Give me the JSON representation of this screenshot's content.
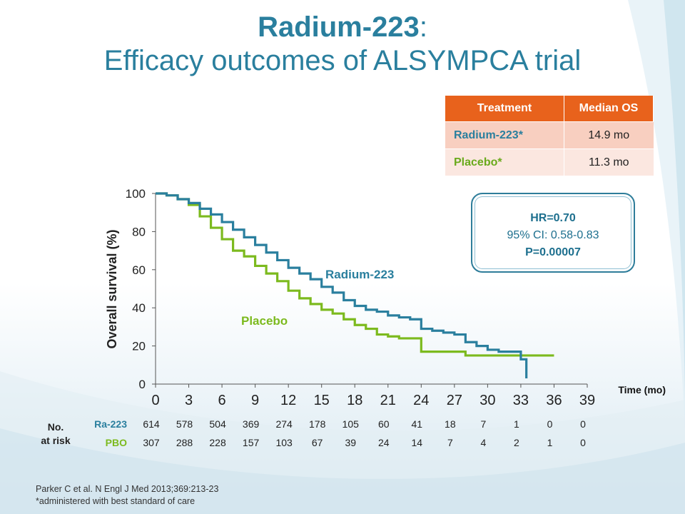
{
  "title": {
    "bold": "Radium-223",
    "colon": ":",
    "line2": "Efficacy outcomes of ALSYMPCA trial"
  },
  "table": {
    "headers": [
      "Treatment",
      "Median OS"
    ],
    "rows": [
      {
        "name": "Radium-223*",
        "value": "14.9 mo"
      },
      {
        "name": "Placebo*",
        "value": "11.3 mo"
      }
    ]
  },
  "hr_box": {
    "line1": "HR=0.70",
    "line2": "95% CI: 0.58-0.83",
    "line3": "P=0.00007"
  },
  "colors": {
    "radium": "#2a7f9e",
    "placebo": "#7cba1e",
    "header": "#e8621c"
  },
  "chart_data": {
    "type": "line",
    "xlabel": "Time (mo)",
    "ylabel": "Overall survival (%)",
    "xlim": [
      0,
      39
    ],
    "ylim": [
      0,
      100
    ],
    "x_ticks": [
      0,
      3,
      6,
      9,
      12,
      15,
      18,
      21,
      24,
      27,
      30,
      33,
      36,
      39
    ],
    "y_ticks": [
      0,
      20,
      40,
      60,
      80,
      100
    ],
    "series": [
      {
        "name": "Radium-223",
        "points": [
          [
            0,
            100
          ],
          [
            1,
            99
          ],
          [
            2,
            97
          ],
          [
            3,
            95
          ],
          [
            4,
            92
          ],
          [
            5,
            89
          ],
          [
            6,
            85
          ],
          [
            7,
            81
          ],
          [
            8,
            77
          ],
          [
            9,
            73
          ],
          [
            10,
            69
          ],
          [
            11,
            65
          ],
          [
            12,
            61
          ],
          [
            13,
            58
          ],
          [
            14,
            55
          ],
          [
            15,
            51
          ],
          [
            16,
            48
          ],
          [
            17,
            44
          ],
          [
            18,
            41
          ],
          [
            19,
            39
          ],
          [
            20,
            38
          ],
          [
            21,
            36
          ],
          [
            22,
            35
          ],
          [
            23,
            34
          ],
          [
            24,
            29
          ],
          [
            25,
            28
          ],
          [
            26,
            27
          ],
          [
            27,
            26
          ],
          [
            28,
            22
          ],
          [
            29,
            20
          ],
          [
            30,
            18
          ],
          [
            31,
            17
          ],
          [
            32,
            17
          ],
          [
            33,
            13
          ],
          [
            33.5,
            5
          ],
          [
            33.5,
            3
          ]
        ]
      },
      {
        "name": "Placebo",
        "points": [
          [
            0,
            100
          ],
          [
            1,
            99
          ],
          [
            2,
            97
          ],
          [
            3,
            94
          ],
          [
            4,
            88
          ],
          [
            5,
            82
          ],
          [
            6,
            76
          ],
          [
            7,
            70
          ],
          [
            8,
            67
          ],
          [
            9,
            62
          ],
          [
            10,
            58
          ],
          [
            11,
            54
          ],
          [
            12,
            49
          ],
          [
            13,
            45
          ],
          [
            14,
            42
          ],
          [
            15,
            39
          ],
          [
            16,
            37
          ],
          [
            17,
            34
          ],
          [
            18,
            31
          ],
          [
            19,
            29
          ],
          [
            20,
            26
          ],
          [
            21,
            25
          ],
          [
            22,
            24
          ],
          [
            23,
            24
          ],
          [
            24,
            17
          ],
          [
            25,
            17
          ],
          [
            26,
            17
          ],
          [
            27,
            17
          ],
          [
            28,
            15
          ],
          [
            30,
            15
          ],
          [
            33,
            15
          ],
          [
            36,
            15
          ]
        ]
      }
    ],
    "series_labels": [
      "Radium-223",
      "Placebo"
    ]
  },
  "risk": {
    "label1": "No.",
    "label2": "at risk",
    "rows": [
      {
        "name": "Ra-223",
        "values": [
          "614",
          "578",
          "504",
          "369",
          "274",
          "178",
          "105",
          "60",
          "41",
          "18",
          "7",
          "1",
          "0",
          "0"
        ]
      },
      {
        "name": "PBO",
        "values": [
          "307",
          "288",
          "228",
          "157",
          "103",
          "67",
          "39",
          "24",
          "14",
          "7",
          "4",
          "2",
          "1",
          "0"
        ]
      }
    ]
  },
  "footer": {
    "line1": "Parker C et al. N Engl J Med 2013;369:213-23",
    "line2": "*administered with best standard of care"
  }
}
